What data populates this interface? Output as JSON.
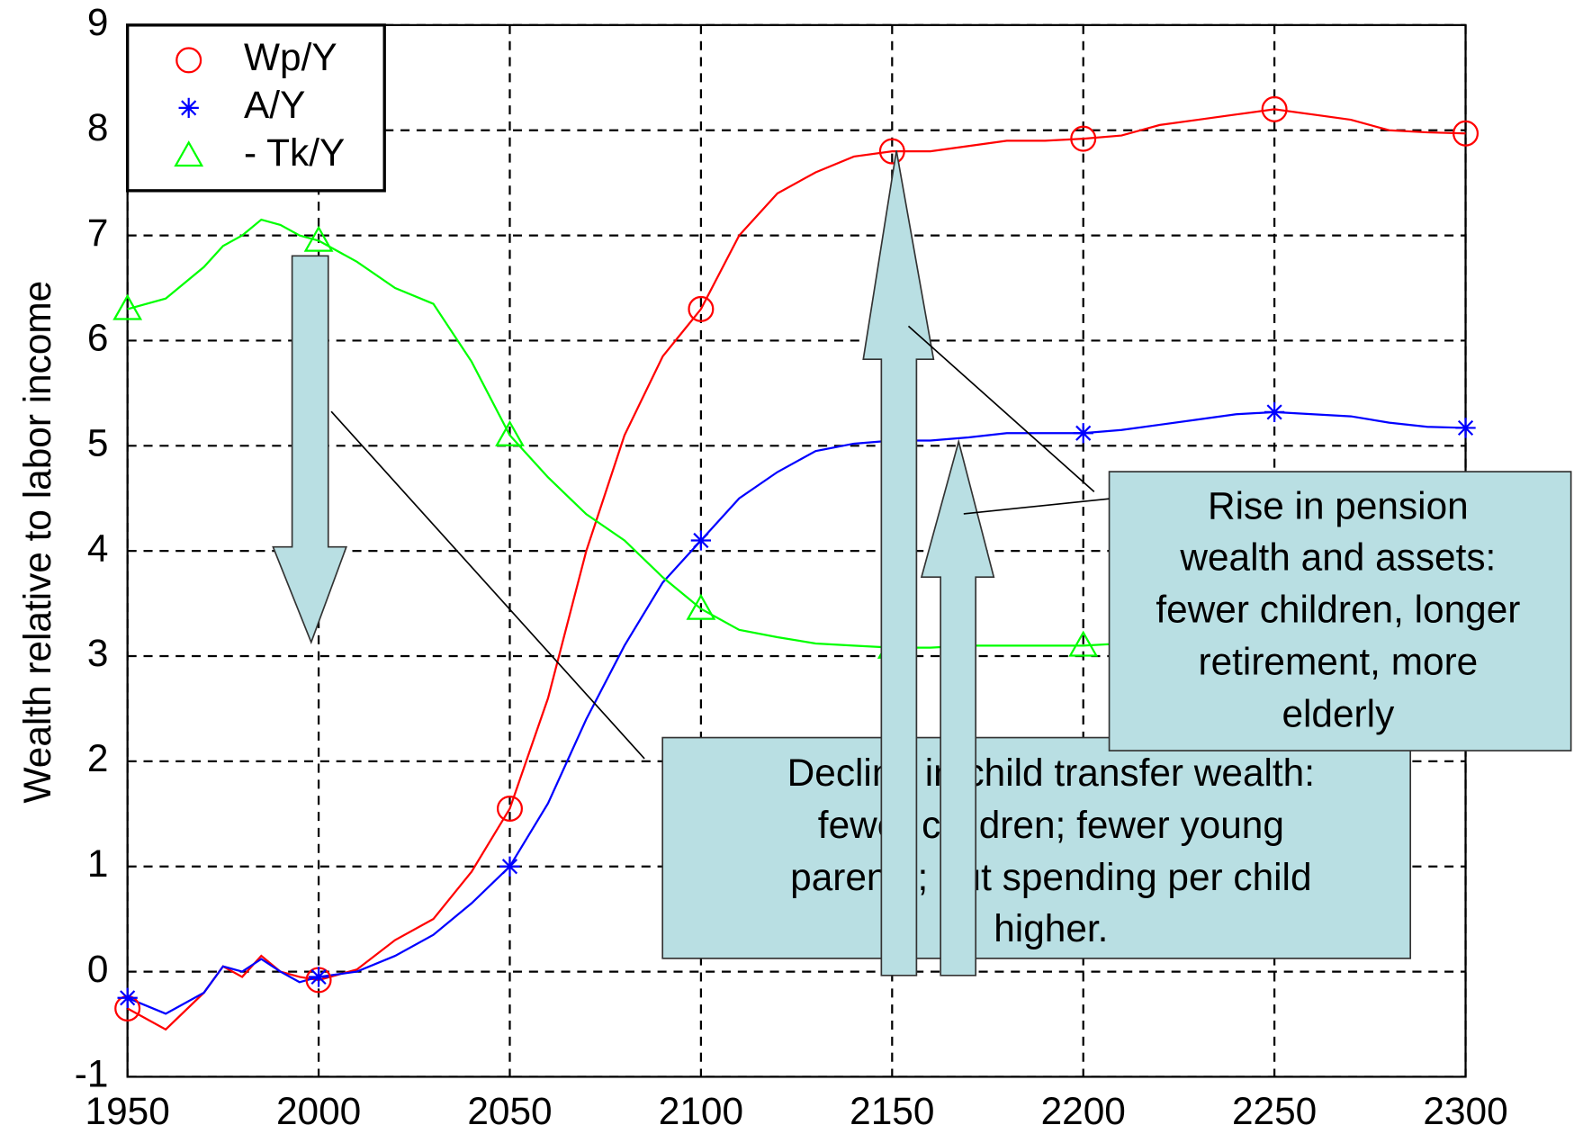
{
  "chart_data": {
    "type": "line",
    "y_label": "Wealth relative to labor income",
    "x": [
      1950,
      1960,
      1970,
      1975,
      1980,
      1985,
      1990,
      1995,
      2000,
      2010,
      2020,
      2030,
      2040,
      2050,
      2060,
      2070,
      2080,
      2090,
      2100,
      2110,
      2120,
      2130,
      2140,
      2150,
      2160,
      2170,
      2180,
      2190,
      2200,
      2210,
      2220,
      2230,
      2240,
      2250,
      2260,
      2270,
      2280,
      2290,
      2300
    ],
    "series": [
      {
        "name": "Wp/Y",
        "color": "#ff0000",
        "marker": "circle",
        "values": [
          -0.35,
          -0.55,
          -0.2,
          0.05,
          -0.05,
          0.15,
          0.0,
          -0.05,
          -0.08,
          0.02,
          0.3,
          0.5,
          0.95,
          1.55,
          2.6,
          4.0,
          5.1,
          5.85,
          6.3,
          7.0,
          7.4,
          7.6,
          7.75,
          7.8,
          7.8,
          7.85,
          7.9,
          7.9,
          7.92,
          7.95,
          8.05,
          8.1,
          8.15,
          8.2,
          8.15,
          8.1,
          8.0,
          7.98,
          7.97
        ]
      },
      {
        "name": "A/Y",
        "color": "#0000ff",
        "marker": "star",
        "values": [
          -0.25,
          -0.4,
          -0.2,
          0.05,
          0.0,
          0.12,
          0.0,
          -0.1,
          -0.05,
          0.0,
          0.15,
          0.35,
          0.65,
          1.0,
          1.6,
          2.4,
          3.1,
          3.7,
          4.1,
          4.5,
          4.75,
          4.95,
          5.02,
          5.05,
          5.05,
          5.08,
          5.12,
          5.12,
          5.12,
          5.15,
          5.2,
          5.25,
          5.3,
          5.32,
          5.3,
          5.28,
          5.22,
          5.18,
          5.17
        ]
      },
      {
        "name": "- Tk/Y",
        "color": "#00ff00",
        "marker": "triangle",
        "values": [
          6.3,
          6.4,
          6.7,
          6.9,
          7.0,
          7.15,
          7.1,
          7.0,
          6.95,
          6.75,
          6.5,
          6.35,
          5.8,
          5.1,
          4.7,
          4.35,
          4.1,
          3.75,
          3.45,
          3.25,
          3.18,
          3.12,
          3.1,
          3.08,
          3.08,
          3.1,
          3.1,
          3.1,
          3.1,
          3.12,
          3.12,
          3.14,
          3.16,
          3.18,
          3.17,
          3.15,
          3.13,
          3.12,
          3.12
        ]
      }
    ],
    "marker_every": 50,
    "xlim": [
      1950,
      2300
    ],
    "ylim": [
      -1,
      9
    ],
    "xticks": [
      1950,
      2000,
      2050,
      2100,
      2150,
      2200,
      2250,
      2300
    ],
    "yticks": [
      -1,
      0,
      1,
      2,
      3,
      4,
      5,
      6,
      7,
      8,
      9
    ],
    "grid": true,
    "legend": "upper left",
    "annotations": [
      {
        "lines": [
          "Decline in child transfer wealth:",
          "fewer children; fewer young",
          "parents; but spending per child",
          "higher."
        ]
      },
      {
        "lines": [
          "Rise in pension",
          "wealth and assets:",
          "fewer children, longer",
          "retirement, more",
          "elderly"
        ]
      }
    ]
  }
}
